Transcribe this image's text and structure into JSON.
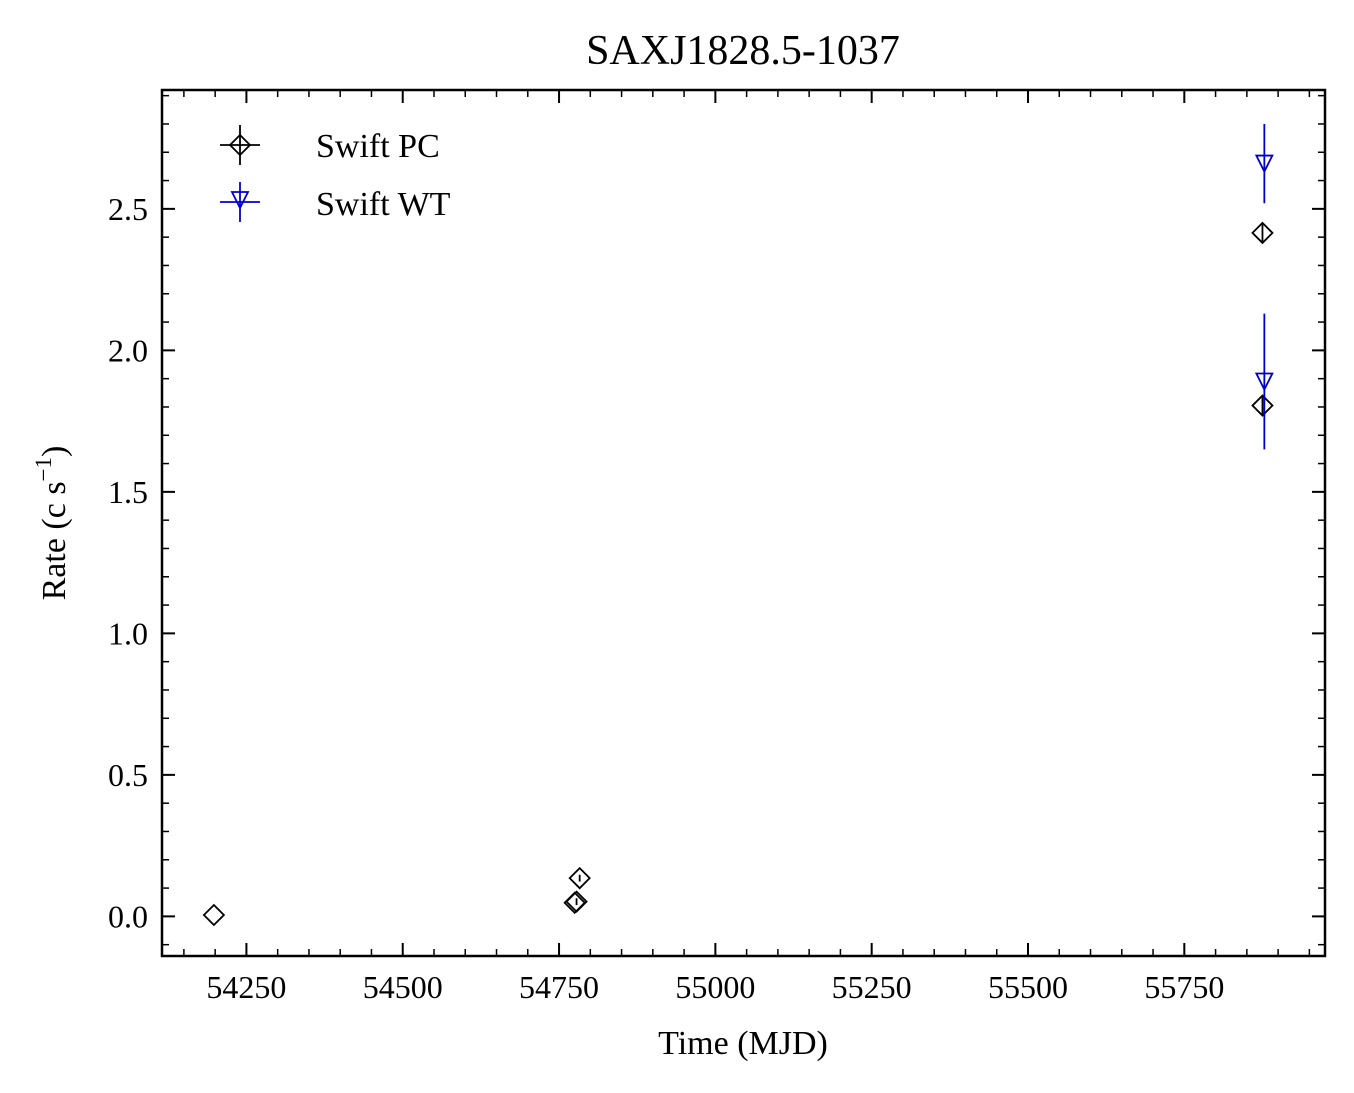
{
  "chart_data": {
    "type": "scatter",
    "title": "SAXJ1828.5-1037",
    "xlabel": "Time (MJD)",
    "ylabel": {
      "base": "Rate (c s",
      "sup": "−1",
      "close": ")"
    },
    "xlim": [
      54115,
      55975
    ],
    "ylim": [
      -0.14,
      2.92
    ],
    "xticks": [
      54250,
      54500,
      54750,
      55000,
      55250,
      55500,
      55750
    ],
    "xtick_labels": [
      "54250",
      "54500",
      "54750",
      "55000",
      "55250",
      "55500",
      "55750"
    ],
    "xminor_step": 50,
    "yticks": [
      0.0,
      0.5,
      1.0,
      1.5,
      2.0,
      2.5
    ],
    "ytick_labels": [
      "0.0",
      "0.5",
      "1.0",
      "1.5",
      "2.0",
      "2.5"
    ],
    "yminor_step": 0.1,
    "legend_position": "top-left",
    "series": [
      {
        "name": "Swift PC",
        "marker": "diamond",
        "color": "#000000",
        "points": [
          {
            "x": 54198,
            "y": 0.005,
            "yerr": 0.0
          },
          {
            "x": 54775,
            "y": 0.048,
            "yerr": 0.0
          },
          {
            "x": 54778,
            "y": 0.052,
            "yerr": 0.012
          },
          {
            "x": 54783,
            "y": 0.135,
            "yerr": 0.012
          },
          {
            "x": 55875,
            "y": 2.415,
            "yerr": 0.03
          },
          {
            "x": 55875,
            "y": 1.805,
            "yerr": 0.03
          }
        ]
      },
      {
        "name": "Swift WT",
        "marker": "triangle-down",
        "color": "#0000cc",
        "points": [
          {
            "x": 55878,
            "y": 2.66,
            "yerr": 0.14
          },
          {
            "x": 55878,
            "y": 1.89,
            "yerr": 0.24
          }
        ]
      }
    ]
  }
}
